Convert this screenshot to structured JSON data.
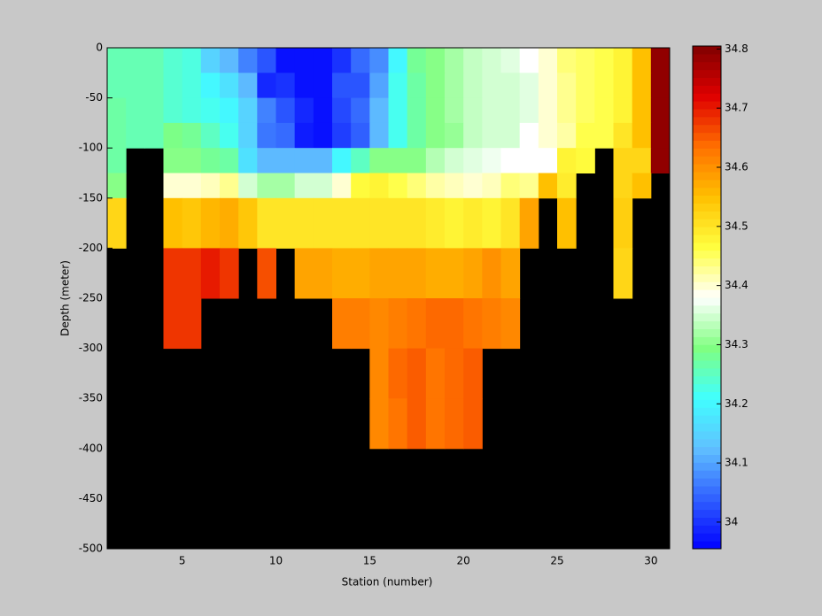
{
  "chart_data": {
    "type": "heatmap",
    "x_label": "Station (number)",
    "y_label": "Depth (meter)",
    "xlim": [
      1,
      31
    ],
    "xticks": [
      5,
      10,
      15,
      20,
      25,
      30
    ],
    "ylim": [
      -500,
      0
    ],
    "yticks": [
      0,
      -50,
      -100,
      -150,
      -200,
      -250,
      -300,
      -350,
      -400,
      -450,
      -500
    ],
    "y_edges": [
      0,
      -25,
      -50,
      -75,
      -100,
      -125,
      -150,
      -200,
      -250,
      -300,
      -350,
      -400
    ],
    "missing_color": "#000000",
    "clim": [
      33.955,
      34.805
    ],
    "colormap": [
      "#0000ff",
      "#3060ff",
      "#60c0ff",
      "#40ffff",
      "#80ff80",
      "#ffffff",
      "#ffff40",
      "#ffc000",
      "#ff7000",
      "#e00000",
      "#800000"
    ],
    "colorbar_ticks": [
      34,
      34.1,
      34.2,
      34.3,
      34.4,
      34.5,
      34.6,
      34.7,
      34.8
    ],
    "values": [
      [
        34.26,
        34.26,
        34.26,
        34.24,
        34.23,
        34.15,
        34.12,
        34.07,
        34.03,
        33.97,
        33.97,
        33.97,
        34.0,
        34.05,
        34.08,
        34.2,
        34.28,
        34.3,
        34.32,
        34.34,
        34.35,
        34.36,
        34.38,
        34.4,
        34.44,
        34.45,
        34.46,
        34.48,
        34.55,
        34.79
      ],
      [
        34.26,
        34.26,
        34.26,
        34.24,
        34.23,
        34.2,
        34.17,
        34.12,
        33.99,
        34.0,
        33.97,
        33.97,
        34.03,
        34.03,
        34.1,
        34.22,
        34.27,
        34.3,
        34.32,
        34.34,
        34.35,
        34.35,
        34.36,
        34.4,
        34.43,
        34.45,
        34.46,
        34.48,
        34.55,
        34.79
      ],
      [
        34.27,
        34.26,
        34.26,
        34.24,
        34.23,
        34.22,
        34.2,
        34.15,
        34.07,
        34.03,
        33.99,
        33.97,
        34.02,
        34.05,
        34.12,
        34.22,
        34.27,
        34.3,
        34.32,
        34.34,
        34.35,
        34.35,
        34.36,
        34.4,
        34.43,
        34.45,
        34.46,
        34.48,
        34.55,
        34.79
      ],
      [
        34.27,
        34.26,
        34.26,
        34.29,
        34.28,
        34.25,
        34.22,
        34.15,
        34.06,
        34.05,
        33.98,
        33.97,
        34.01,
        34.04,
        34.12,
        34.22,
        34.27,
        34.3,
        34.31,
        34.34,
        34.35,
        34.35,
        34.38,
        34.4,
        34.42,
        34.46,
        34.46,
        34.5,
        34.55,
        34.79
      ],
      [
        34.27,
        null,
        null,
        34.3,
        34.3,
        34.28,
        34.27,
        34.17,
        34.12,
        34.12,
        34.12,
        34.12,
        34.2,
        34.25,
        34.3,
        34.3,
        34.3,
        34.33,
        34.35,
        34.36,
        34.37,
        34.38,
        34.38,
        34.38,
        34.48,
        34.47,
        null,
        34.52,
        34.52,
        34.79
      ],
      [
        34.3,
        null,
        null,
        34.4,
        34.4,
        34.41,
        34.43,
        34.35,
        34.32,
        34.32,
        34.35,
        34.35,
        34.4,
        34.47,
        34.48,
        34.46,
        34.44,
        34.42,
        34.41,
        34.4,
        34.41,
        34.44,
        34.43,
        34.55,
        34.49,
        null,
        null,
        34.52,
        34.55,
        null
      ],
      [
        34.52,
        null,
        null,
        34.55,
        34.54,
        34.56,
        34.57,
        34.54,
        34.5,
        34.5,
        34.5,
        34.5,
        34.5,
        34.5,
        34.5,
        34.5,
        34.5,
        34.49,
        34.48,
        34.49,
        34.48,
        34.5,
        34.58,
        null,
        34.55,
        null,
        null,
        34.53,
        null,
        null
      ],
      [
        null,
        null,
        null,
        34.68,
        34.68,
        34.7,
        34.68,
        null,
        34.66,
        null,
        34.58,
        34.58,
        34.57,
        34.57,
        34.58,
        34.58,
        34.58,
        34.57,
        34.57,
        34.58,
        34.6,
        34.58,
        null,
        null,
        null,
        null,
        null,
        34.52,
        null,
        null
      ],
      [
        null,
        null,
        null,
        34.68,
        34.68,
        null,
        null,
        null,
        null,
        null,
        null,
        null,
        34.62,
        34.62,
        34.61,
        34.62,
        34.63,
        34.64,
        34.64,
        34.63,
        34.62,
        34.61,
        null,
        null,
        null,
        null,
        null,
        null,
        null,
        null
      ],
      [
        null,
        null,
        null,
        null,
        null,
        null,
        null,
        null,
        null,
        null,
        null,
        null,
        null,
        null,
        34.61,
        34.64,
        34.65,
        34.63,
        34.64,
        34.65,
        null,
        null,
        null,
        null,
        null,
        null,
        null,
        null,
        null,
        null
      ],
      [
        null,
        null,
        null,
        null,
        null,
        null,
        null,
        null,
        null,
        null,
        null,
        null,
        null,
        null,
        34.61,
        34.63,
        34.65,
        34.63,
        34.64,
        34.65,
        null,
        null,
        null,
        null,
        null,
        null,
        null,
        null,
        null,
        null
      ]
    ]
  }
}
